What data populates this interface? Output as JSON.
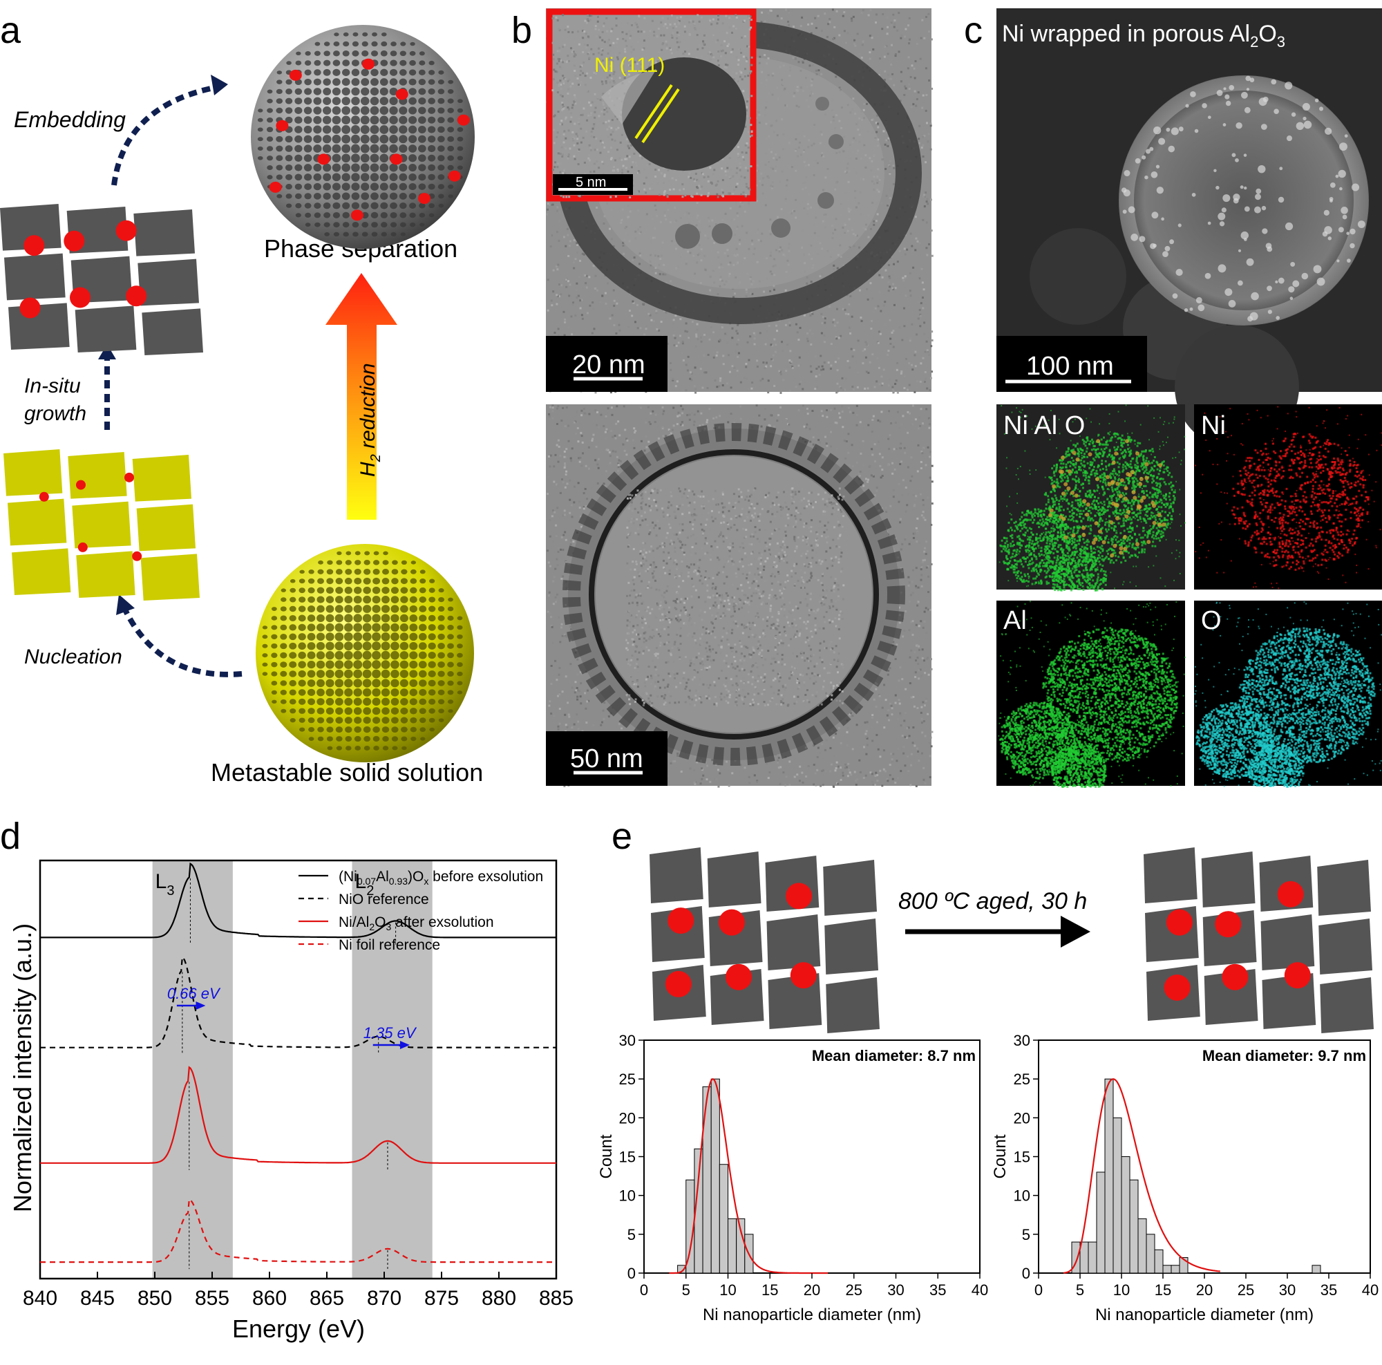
{
  "panels": {
    "a": {
      "letter": "a",
      "embedding": "Embedding",
      "phase_separation": "Phase separation",
      "in_situ_1": "In-situ",
      "in_situ_2": "growth",
      "nucleation": "Nucleation",
      "h2_reduction_prefix": "H",
      "h2_reduction_sub": "2",
      "h2_reduction_suffix": " reduction",
      "metastable": "Metastable solid solution"
    },
    "b": {
      "letter": "b",
      "inset_label": "Ni (111)",
      "inset_scale": "5 nm",
      "top_scale": "20 nm",
      "bottom_scale": "50 nm"
    },
    "c": {
      "letter": "c",
      "title_prefix": "Ni wrapped in porous Al",
      "title_sub1": "2",
      "title_mid": "O",
      "title_sub2": "3",
      "scale": "100 nm",
      "map_nialo": "Ni Al O",
      "map_ni": "Ni",
      "map_al": "Al",
      "map_o": "O"
    },
    "e": {
      "letter": "e",
      "aging_label": "800 ºC aged, 30 h"
    }
  },
  "colors": {
    "ni_red": "#ee1111",
    "al_green": "#22cc33",
    "o_cyan": "#22cccc",
    "lattice_grey": "#555555",
    "lattice_yellow": "#cccc00",
    "shading": "#c0c0c0",
    "fit_red": "#e01010",
    "shift_blue": "#1010e0"
  },
  "chart_data": [
    {
      "id": "d",
      "letter": "d",
      "type": "line",
      "xlabel": "Energy (eV)",
      "ylabel": "Normalized intensity (a.u.)",
      "xlim": [
        840,
        885
      ],
      "xticks": [
        840,
        845,
        850,
        855,
        860,
        865,
        870,
        875,
        880,
        885
      ],
      "shaded_regions": [
        {
          "label": "L",
          "sub": "3",
          "from": 849.8,
          "to": 856.8
        },
        {
          "label": "L",
          "sub": "2",
          "from": 867.2,
          "to": 874.2
        }
      ],
      "annotations": [
        {
          "text": "0.66 eV",
          "from": 852.4,
          "to": 853.1
        },
        {
          "text": "1.35 eV",
          "from": 869.5,
          "to": 870.9
        }
      ],
      "legend_position": "top-right",
      "series": [
        {
          "name_parts": [
            "(Ni",
            "0.07",
            "Al",
            "0.93",
            ")O",
            "x",
            " before exsolution"
          ],
          "style": "solid-black",
          "baseline": 1.0,
          "peaks": [
            [
              853.1,
              0.55,
              0.9
            ],
            [
              871.0,
              0.15,
              1.2
            ]
          ],
          "peak_marks": [
            853.1,
            871.0
          ]
        },
        {
          "name_parts": [
            "NiO reference"
          ],
          "style": "dashed-black",
          "baseline": 0.0,
          "peaks": [
            [
              852.4,
              0.7,
              0.8
            ],
            [
              869.5,
              0.1,
              1.0
            ]
          ],
          "peak_marks": [
            852.4,
            869.5
          ]
        },
        {
          "name_parts": [
            "Ni/Al",
            "2",
            "O",
            "3",
            " after exsolution"
          ],
          "style": "solid-red",
          "baseline": -1.05,
          "peaks": [
            [
              853.0,
              0.75,
              0.9
            ],
            [
              870.3,
              0.2,
              1.2
            ]
          ],
          "peak_marks": [
            853.0,
            870.3
          ]
        },
        {
          "name_parts": [
            "Ni foil reference"
          ],
          "style": "dashed-red",
          "baseline": -1.95,
          "peaks": [
            [
              853.0,
              0.45,
              0.9
            ],
            [
              870.3,
              0.12,
              1.1
            ]
          ],
          "peak_marks": [
            853.0,
            870.3
          ]
        }
      ],
      "ylim": [
        -2.1,
        1.7
      ]
    },
    {
      "id": "e1",
      "type": "bar",
      "title": "Mean diameter: 8.7 nm",
      "xlabel": "Ni nanoparticle diameter (nm)",
      "ylabel": "Count",
      "xlim": [
        0,
        40
      ],
      "ylim": [
        0,
        30
      ],
      "xticks": [
        0,
        5,
        10,
        15,
        20,
        25,
        30,
        35,
        40
      ],
      "yticks": [
        0,
        5,
        10,
        15,
        20,
        25,
        30
      ],
      "bin_width": 1,
      "bins": [
        [
          4,
          1
        ],
        [
          5,
          12
        ],
        [
          6,
          16
        ],
        [
          7,
          24
        ],
        [
          8,
          25
        ],
        [
          9,
          14
        ],
        [
          10,
          7
        ],
        [
          11,
          7
        ],
        [
          12,
          5
        ]
      ],
      "fit": {
        "mean": 8.2,
        "sigma": 1.6,
        "peak": 25
      }
    },
    {
      "id": "e2",
      "type": "bar",
      "title": "Mean diameter: 9.7 nm",
      "xlabel": "Ni nanoparticle diameter (nm)",
      "ylabel": "Count",
      "xlim": [
        0,
        40
      ],
      "ylim": [
        0,
        30
      ],
      "xticks": [
        0,
        5,
        10,
        15,
        20,
        25,
        30,
        35,
        40
      ],
      "yticks": [
        0,
        5,
        10,
        15,
        20,
        25,
        30
      ],
      "bin_width": 1,
      "bins": [
        [
          4,
          4
        ],
        [
          5,
          4
        ],
        [
          6,
          4
        ],
        [
          7,
          13
        ],
        [
          8,
          25
        ],
        [
          9,
          20
        ],
        [
          10,
          15
        ],
        [
          11,
          12
        ],
        [
          12,
          7
        ],
        [
          13,
          5
        ],
        [
          14,
          3
        ],
        [
          15,
          1
        ],
        [
          16,
          1
        ],
        [
          17,
          2
        ],
        [
          33,
          1
        ]
      ],
      "fit": {
        "mean": 9.0,
        "sigma": 2.6,
        "peak": 25
      }
    }
  ]
}
